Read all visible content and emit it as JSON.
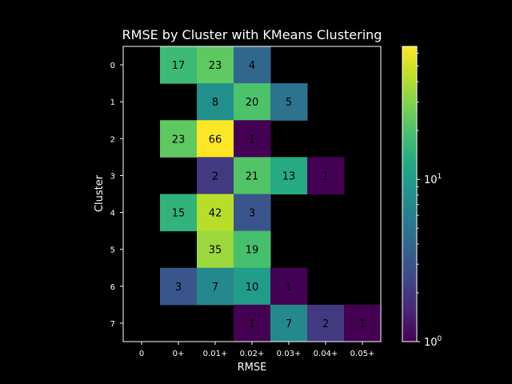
{
  "chart_data": {
    "type": "heatmap",
    "title": "RMSE by Cluster with KMeans Clustering",
    "xlabel": "RMSE",
    "ylabel": "Cluster",
    "x_categories": [
      "0",
      "0+",
      "0.01+",
      "0.02+",
      "0.03+",
      "0.04+",
      "0.05+"
    ],
    "y_categories": [
      "0",
      "1",
      "2",
      "3",
      "4",
      "5",
      "6",
      "7"
    ],
    "values": [
      [
        null,
        17,
        23,
        4,
        null,
        null,
        null
      ],
      [
        null,
        null,
        8,
        20,
        5,
        null,
        null
      ],
      [
        null,
        23,
        66,
        1,
        null,
        null,
        null
      ],
      [
        null,
        null,
        2,
        21,
        13,
        1,
        null
      ],
      [
        null,
        15,
        42,
        3,
        null,
        null,
        null
      ],
      [
        null,
        null,
        35,
        19,
        null,
        null,
        null
      ],
      [
        null,
        3,
        7,
        10,
        1,
        null,
        null
      ],
      [
        null,
        null,
        null,
        1,
        7,
        2,
        1
      ]
    ],
    "colorbar": {
      "scale": "log",
      "colormap": "viridis",
      "range": [
        1,
        66
      ],
      "major_ticks": [
        1,
        10
      ],
      "tick_labels": [
        "10",
        "10"
      ],
      "tick_exponents": [
        "0",
        "1"
      ]
    },
    "background": "#000000",
    "text_color": "#ffffff"
  }
}
